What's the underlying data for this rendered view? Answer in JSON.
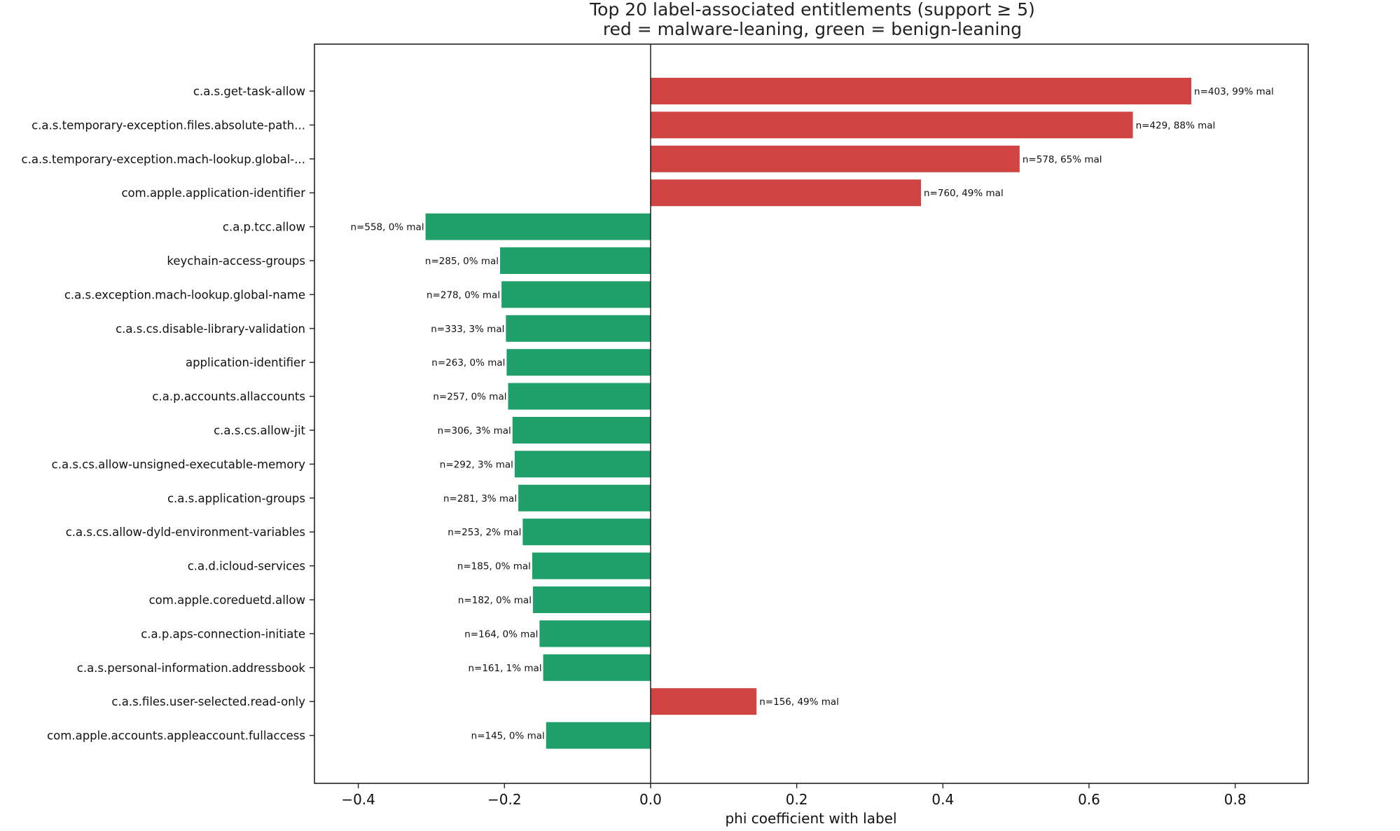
{
  "chart_data": {
    "type": "bar",
    "orientation": "horizontal",
    "title": "Top 20 label-associated entitlements (support ≥ 5)",
    "subtitle": "red = malware-leaning, green = benign-leaning",
    "xlabel": "phi coefficient with label",
    "ylabel": "",
    "xlim": [
      -0.46,
      0.9
    ],
    "xticks": [
      -0.4,
      -0.2,
      0.0,
      0.2,
      0.4,
      0.6,
      0.8
    ],
    "xtick_labels": [
      "−0.4",
      "−0.2",
      "0.0",
      "0.2",
      "0.4",
      "0.6",
      "0.8"
    ],
    "grid": false,
    "legend": "none",
    "colors": {
      "malware": "#d04444",
      "benign": "#1fa06b"
    },
    "categories": [
      "c.a.s.get-task-allow",
      "c.a.s.temporary-exception.files.absolute-path...",
      "c.a.s.temporary-exception.mach-lookup.global-...",
      "com.apple.application-identifier",
      "c.a.p.tcc.allow",
      "keychain-access-groups",
      "c.a.s.exception.mach-lookup.global-name",
      "c.a.s.cs.disable-library-validation",
      "application-identifier",
      "c.a.p.accounts.allaccounts",
      "c.a.s.cs.allow-jit",
      "c.a.s.cs.allow-unsigned-executable-memory",
      "c.a.s.application-groups",
      "c.a.s.cs.allow-dyld-environment-variables",
      "c.a.d.icloud-services",
      "com.apple.coreduetd.allow",
      "c.a.p.aps-connection-initiate",
      "c.a.s.personal-information.addressbook",
      "c.a.s.files.user-selected.read-only",
      "com.apple.accounts.appleaccount.fullaccess"
    ],
    "values": [
      0.74,
      0.66,
      0.505,
      0.37,
      -0.308,
      -0.206,
      -0.204,
      -0.198,
      -0.197,
      -0.195,
      -0.189,
      -0.186,
      -0.181,
      -0.175,
      -0.162,
      -0.161,
      -0.152,
      -0.147,
      0.145,
      -0.143
    ],
    "data_labels": [
      "n=403, 99% mal",
      "n=429, 88% mal",
      "n=578, 65% mal",
      "n=760, 49% mal",
      "n=558, 0% mal",
      "n=285, 0% mal",
      "n=278, 0% mal",
      "n=333, 3% mal",
      "n=263, 0% mal",
      "n=257, 0% mal",
      "n=306, 3% mal",
      "n=292, 3% mal",
      "n=281, 3% mal",
      "n=253, 2% mal",
      "n=185, 0% mal",
      "n=182, 0% mal",
      "n=164, 0% mal",
      "n=161, 1% mal",
      "n=156, 49% mal",
      "n=145, 0% mal"
    ]
  }
}
